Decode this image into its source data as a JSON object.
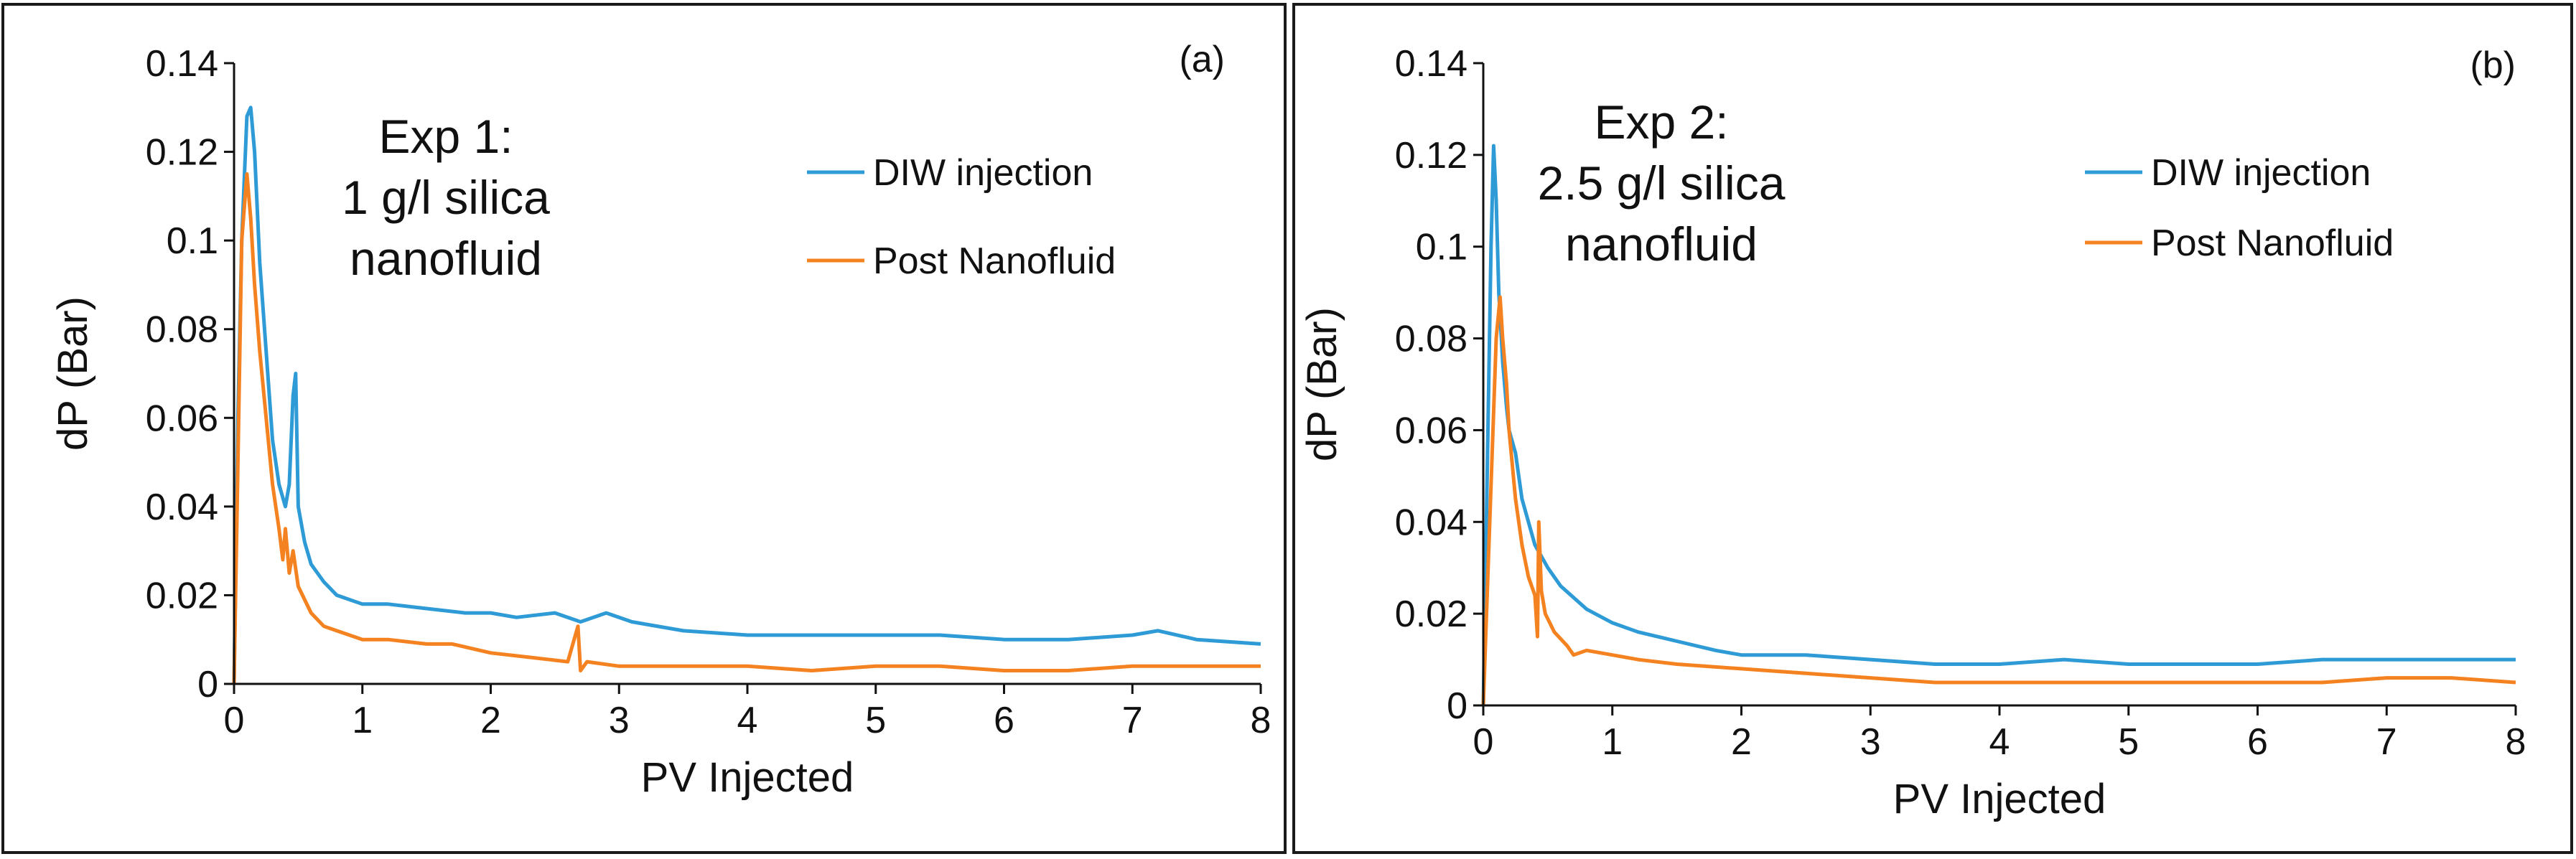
{
  "chart_data": [
    {
      "id": "a",
      "type": "line",
      "panel_label": "(a)",
      "annotation": [
        "Exp 1:",
        "1 g/l silica",
        "nanofluid"
      ],
      "xlabel": "PV Injected",
      "ylabel": "dP (Bar)",
      "xlim": [
        0,
        8
      ],
      "ylim": [
        0,
        0.14
      ],
      "xticks": [
        "0",
        "1",
        "2",
        "3",
        "4",
        "5",
        "6",
        "7",
        "8"
      ],
      "yticks": [
        "0",
        "0.02",
        "0.04",
        "0.06",
        "0.08",
        "0.1",
        "0.12",
        "0.14"
      ],
      "legend_position": "top-right",
      "series": [
        {
          "name": "DIW injection",
          "color": "#2E9BD6",
          "x": [
            0,
            0.03,
            0.06,
            0.1,
            0.13,
            0.16,
            0.2,
            0.25,
            0.3,
            0.35,
            0.4,
            0.43,
            0.46,
            0.48,
            0.5,
            0.55,
            0.6,
            0.7,
            0.8,
            1.0,
            1.2,
            1.5,
            1.8,
            2.0,
            2.2,
            2.5,
            2.7,
            2.9,
            3.1,
            3.5,
            4.0,
            4.5,
            5.0,
            5.5,
            6.0,
            6.5,
            7.0,
            7.2,
            7.5,
            8.0
          ],
          "y": [
            0.0,
            0.06,
            0.1,
            0.128,
            0.13,
            0.12,
            0.095,
            0.075,
            0.055,
            0.045,
            0.04,
            0.045,
            0.065,
            0.07,
            0.04,
            0.032,
            0.027,
            0.023,
            0.02,
            0.018,
            0.018,
            0.017,
            0.016,
            0.016,
            0.015,
            0.016,
            0.014,
            0.016,
            0.014,
            0.012,
            0.011,
            0.011,
            0.011,
            0.011,
            0.01,
            0.01,
            0.011,
            0.012,
            0.01,
            0.009
          ]
        },
        {
          "name": "Post Nanofluid",
          "color": "#F58220",
          "x": [
            0,
            0.03,
            0.06,
            0.1,
            0.13,
            0.16,
            0.2,
            0.25,
            0.3,
            0.35,
            0.38,
            0.4,
            0.43,
            0.46,
            0.5,
            0.6,
            0.7,
            0.8,
            1.0,
            1.2,
            1.5,
            1.7,
            2.0,
            2.3,
            2.6,
            2.68,
            2.7,
            2.75,
            3.0,
            3.5,
            4.0,
            4.5,
            5.0,
            5.5,
            6.0,
            6.5,
            7.0,
            7.5,
            8.0
          ],
          "y": [
            0.0,
            0.05,
            0.1,
            0.115,
            0.105,
            0.09,
            0.075,
            0.06,
            0.045,
            0.035,
            0.028,
            0.035,
            0.025,
            0.03,
            0.022,
            0.016,
            0.013,
            0.012,
            0.01,
            0.01,
            0.009,
            0.009,
            0.007,
            0.006,
            0.005,
            0.013,
            0.003,
            0.005,
            0.004,
            0.004,
            0.004,
            0.003,
            0.004,
            0.004,
            0.003,
            0.003,
            0.004,
            0.004,
            0.004
          ]
        }
      ]
    },
    {
      "id": "b",
      "type": "line",
      "panel_label": "(b)",
      "annotation": [
        "Exp 2:",
        "2.5 g/l  silica",
        "nanofluid"
      ],
      "xlabel": "PV Injected",
      "ylabel": "dP (Bar)",
      "xlim": [
        0,
        8
      ],
      "ylim": [
        0,
        0.14
      ],
      "xticks": [
        "0",
        "1",
        "2",
        "3",
        "4",
        "5",
        "6",
        "7",
        "8"
      ],
      "yticks": [
        "0",
        "0.02",
        "0.04",
        "0.06",
        "0.08",
        "0.1",
        "0.12",
        "0.14"
      ],
      "legend_position": "top-right",
      "series": [
        {
          "name": "DIW injection",
          "color": "#2E9BD6",
          "x": [
            0,
            0.03,
            0.06,
            0.08,
            0.1,
            0.12,
            0.15,
            0.18,
            0.2,
            0.25,
            0.3,
            0.35,
            0.4,
            0.5,
            0.6,
            0.8,
            1.0,
            1.2,
            1.5,
            1.8,
            2.0,
            2.5,
            3.0,
            3.5,
            4.0,
            4.5,
            5.0,
            5.5,
            6.0,
            6.5,
            7.0,
            7.5,
            8.0
          ],
          "y": [
            0.0,
            0.05,
            0.1,
            0.122,
            0.11,
            0.09,
            0.075,
            0.065,
            0.06,
            0.055,
            0.045,
            0.04,
            0.035,
            0.03,
            0.026,
            0.021,
            0.018,
            0.016,
            0.014,
            0.012,
            0.011,
            0.011,
            0.01,
            0.009,
            0.009,
            0.01,
            0.009,
            0.009,
            0.009,
            0.01,
            0.01,
            0.01,
            0.01
          ]
        },
        {
          "name": "Post Nanofluid",
          "color": "#F58220",
          "x": [
            0,
            0.05,
            0.1,
            0.13,
            0.15,
            0.18,
            0.2,
            0.25,
            0.3,
            0.35,
            0.4,
            0.42,
            0.43,
            0.45,
            0.48,
            0.55,
            0.65,
            0.7,
            0.8,
            1.0,
            1.2,
            1.5,
            2.0,
            2.5,
            3.0,
            3.5,
            4.0,
            4.5,
            5.0,
            5.5,
            6.0,
            6.5,
            7.0,
            7.5,
            8.0
          ],
          "y": [
            0.0,
            0.04,
            0.08,
            0.089,
            0.08,
            0.07,
            0.06,
            0.045,
            0.035,
            0.028,
            0.024,
            0.015,
            0.04,
            0.025,
            0.02,
            0.016,
            0.013,
            0.011,
            0.012,
            0.011,
            0.01,
            0.009,
            0.008,
            0.007,
            0.006,
            0.005,
            0.005,
            0.005,
            0.005,
            0.005,
            0.005,
            0.005,
            0.006,
            0.006,
            0.005
          ]
        }
      ]
    }
  ]
}
